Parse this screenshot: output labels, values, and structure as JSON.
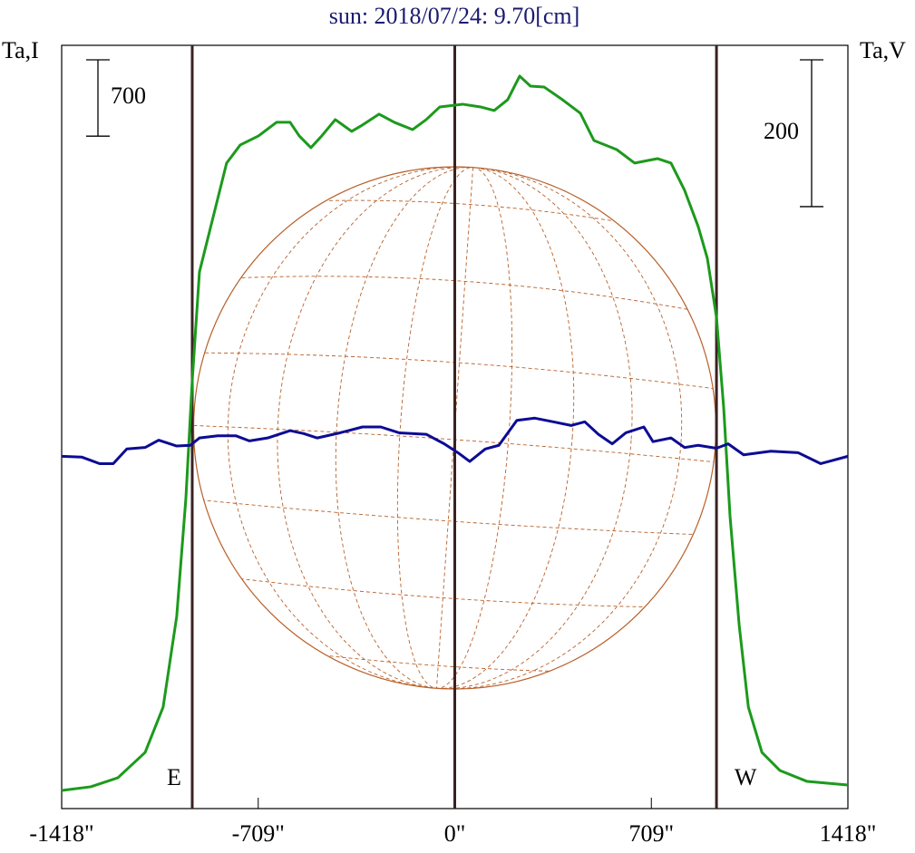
{
  "chart_data": {
    "type": "line",
    "title": "sun: 2018/07/24: 9.70[cm]",
    "y_label": "Ta,I",
    "y2_label": "Ta,V",
    "xlim": [
      -1418,
      1418
    ],
    "xticks": [
      {
        "value": -1418,
        "label": "-1418\""
      },
      {
        "value": -709,
        "label": "-709\""
      },
      {
        "value": 0,
        "label": "0\""
      },
      {
        "value": 709,
        "label": "709\""
      },
      {
        "value": 1418,
        "label": "1418\""
      }
    ],
    "ylim": [
      0,
      7000
    ],
    "y2lim": [
      -480,
      560
    ],
    "scale_bars": [
      {
        "axis": "y",
        "value": 700
      },
      {
        "axis": "y2",
        "value": 200
      }
    ],
    "vlines": [
      {
        "x": -947,
        "label": "E"
      },
      {
        "x": 0
      },
      {
        "x": 944,
        "label": "W"
      }
    ],
    "vline_color": "#3a2222",
    "series": [
      {
        "name": "Ta,I",
        "color": "#1c9a1c",
        "x": [
          -1418,
          -1313,
          -1215,
          -1117,
          -1052,
          -1003,
          -970,
          -947,
          -921,
          -872,
          -823,
          -774,
          -708,
          -643,
          -594,
          -561,
          -519,
          -480,
          -431,
          -372,
          -333,
          -273,
          -218,
          -152,
          -103,
          -54,
          28,
          93,
          142,
          191,
          234,
          273,
          322,
          388,
          453,
          502,
          584,
          649,
          731,
          780,
          829,
          878,
          911,
          944,
          970,
          993,
          1026,
          1059,
          1108,
          1173,
          1271,
          1418
        ],
        "values": [
          166,
          200,
          283,
          515,
          931,
          1763,
          2843,
          3924,
          4922,
          5421,
          5920,
          6086,
          6169,
          6294,
          6294,
          6169,
          6061,
          6169,
          6319,
          6211,
          6269,
          6369,
          6294,
          6227,
          6319,
          6435,
          6460,
          6435,
          6402,
          6502,
          6718,
          6626,
          6618,
          6502,
          6377,
          6127,
          6044,
          5920,
          5961,
          5920,
          5670,
          5338,
          5047,
          4506,
          3675,
          2677,
          1679,
          931,
          515,
          349,
          249,
          216
        ]
      },
      {
        "name": "Ta,V",
        "color": "#0c0c94",
        "axis": "y2",
        "x": [
          -1418,
          -1346,
          -1281,
          -1232,
          -1183,
          -1117,
          -1068,
          -1003,
          -954,
          -921,
          -855,
          -790,
          -741,
          -675,
          -594,
          -545,
          -496,
          -414,
          -333,
          -267,
          -201,
          -103,
          -38,
          11,
          54,
          110,
          159,
          224,
          289,
          355,
          420,
          469,
          518,
          568,
          617,
          682,
          715,
          780,
          829,
          878,
          944,
          986,
          1042,
          1140,
          1238,
          1320,
          1418
        ],
        "values": [
          0,
          -1,
          -10,
          -10,
          10,
          12,
          22,
          14,
          15,
          25,
          28,
          28,
          21,
          25,
          35,
          31,
          25,
          32,
          40,
          40,
          32,
          30,
          17,
          5,
          -7,
          10,
          15,
          49,
          52,
          47,
          42,
          47,
          30,
          17,
          32,
          40,
          20,
          25,
          12,
          15,
          11,
          17,
          2,
          7,
          5,
          -10,
          0
        ]
      }
    ]
  }
}
